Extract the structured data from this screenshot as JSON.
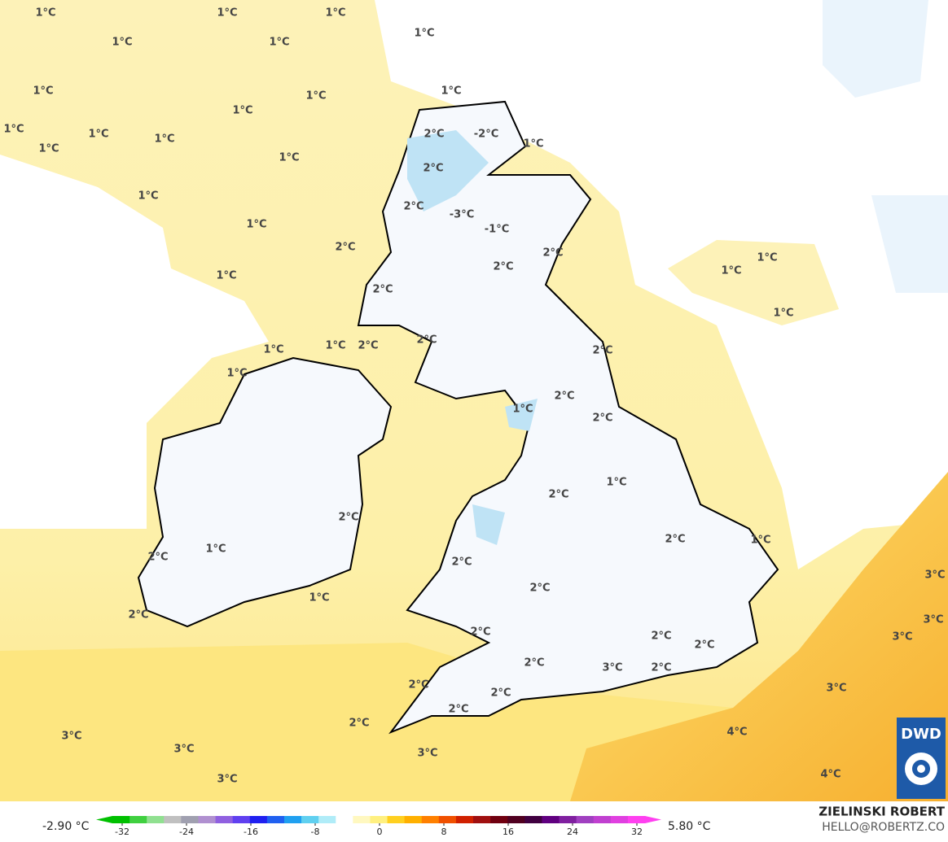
{
  "map": {
    "labels": [
      "1°C",
      "1°C",
      "1°C",
      "1°C",
      "1°C",
      "1°C",
      "1°C",
      "1°C",
      "1°C",
      "1°C",
      "1°C",
      "1°C",
      "1°C",
      "1°C",
      "1°C",
      "1°C",
      "2°C",
      "-2°C",
      "2°C",
      "2°C",
      "-3°C",
      "-1°C",
      "1°C",
      "1°C",
      "2°C",
      "2°C",
      "2°C",
      "1°C",
      "1°C",
      "1°C",
      "2°C",
      "1°C",
      "1°C",
      "1°C",
      "2°C",
      "2°C",
      "2°C",
      "1°C",
      "2°C",
      "1°C",
      "2°C",
      "1°C",
      "2°C",
      "2°C",
      "2°C",
      "1°C",
      "2°C",
      "1°C",
      "2°C",
      "3°C",
      "2°C",
      "1°C",
      "2°C",
      "3°C",
      "2°C",
      "2°C",
      "3°C",
      "2°C",
      "2°C",
      "3°C",
      "2°C",
      "2°C",
      "3°C",
      "2°C",
      "2°C",
      "2°C",
      "4°C",
      "3°C",
      "3°C",
      "3°C",
      "4°C",
      "3°C"
    ]
  },
  "footer": {
    "min_label": "-2.90 °C",
    "max_label": "5.80 °C",
    "colorbar_ticks": [
      -32,
      -24,
      -16,
      -8,
      0,
      8,
      16,
      24,
      32
    ],
    "author": "ZIELINSKI ROBERT",
    "contact": "HELLO@ROBERTZ.CO",
    "logo": "DWD"
  }
}
